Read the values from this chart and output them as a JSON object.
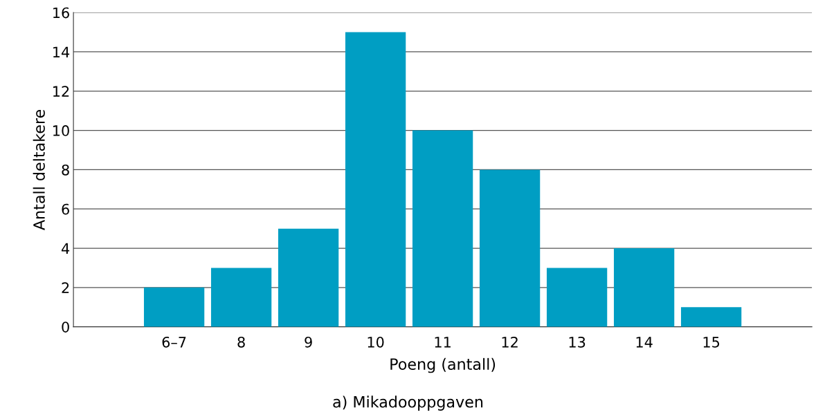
{
  "chart_data": {
    "type": "bar",
    "title": "a) Mikadooppgaven",
    "xlabel": "Poeng (antall)",
    "ylabel": "Antall deltakere",
    "categories": [
      null,
      "6–7",
      "8",
      "9",
      "10",
      "11",
      "12",
      "13",
      "14",
      "15",
      null
    ],
    "values": [
      null,
      2,
      3,
      5,
      15,
      10,
      8,
      3,
      4,
      1,
      null
    ],
    "color": "#009ec3",
    "ylim": [
      0,
      16
    ],
    "yticks": [
      0,
      2,
      4,
      6,
      8,
      10,
      12,
      14,
      16
    ],
    "grid": "y"
  }
}
